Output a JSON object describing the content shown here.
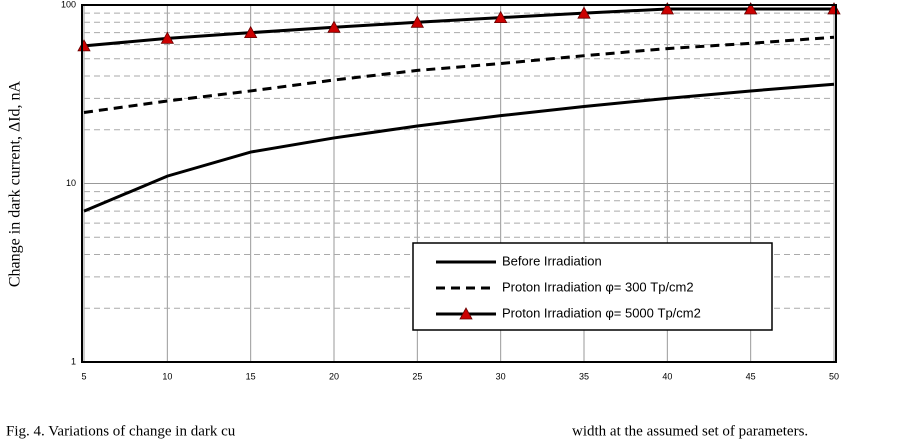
{
  "chart_data": {
    "type": "line",
    "y_label": "Change in dark current, ΔId, nA",
    "caption_parts": [
      "Fig. 4. Variations of change in dark cu",
      "width at the assumed set of parameters."
    ],
    "x": [
      5,
      10,
      15,
      20,
      25,
      30,
      35,
      40,
      45,
      50
    ],
    "series": [
      {
        "name": "Before Irradiation",
        "color": "#000000",
        "line_style": "solid",
        "values": [
          7,
          11,
          15,
          18,
          21,
          24,
          27,
          30,
          33,
          36
        ]
      },
      {
        "name": "Proton Irradiation φ= 300 Tp/cm2",
        "color": "#000000",
        "line_style": "dashed",
        "values": [
          25,
          29,
          33,
          38,
          43,
          47,
          52,
          57,
          61,
          66
        ]
      },
      {
        "name": "Proton Irradiation φ= 5000 Tp/cm2",
        "color": "#000000",
        "line_style": "solid",
        "marker": "triangle",
        "marker_color": "#cc0000",
        "values": [
          59,
          65,
          70,
          75,
          80,
          85,
          90,
          95,
          95,
          95
        ]
      }
    ],
    "xlim": [
      5,
      50
    ],
    "xticks": [
      5,
      10,
      15,
      20,
      25,
      30,
      35,
      40,
      45,
      50
    ],
    "ylim": [
      1,
      100
    ],
    "yticks": [
      1,
      10,
      100
    ],
    "log_y": true,
    "grid": true
  }
}
